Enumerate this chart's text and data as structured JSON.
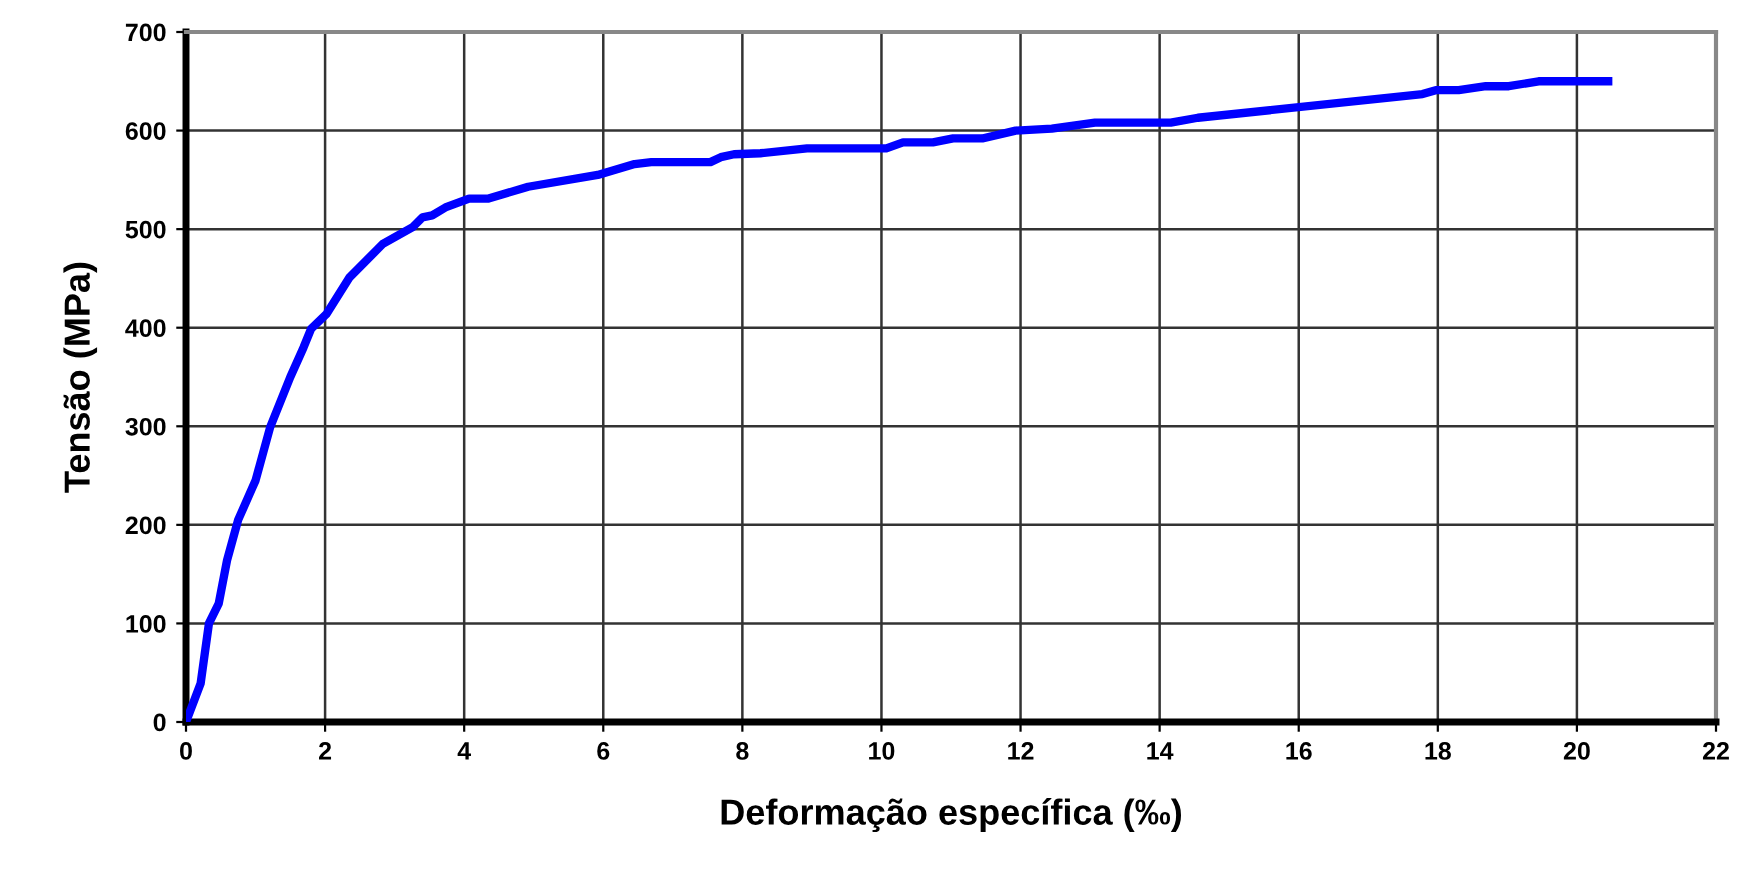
{
  "chart_data": {
    "type": "line",
    "xlabel": "Deformação específica (‰)",
    "ylabel": "Tensão (MPa)",
    "series": [
      {
        "color": "#0000ff",
        "x": [
          0,
          0.21,
          0.33,
          0.47,
          0.59,
          0.75,
          1.0,
          1.21,
          1.5,
          1.69,
          1.8,
          2.02,
          2.35,
          2.83,
          3.26,
          3.4,
          3.54,
          3.73,
          4.07,
          4.35,
          4.92,
          5.92,
          6.45,
          6.69,
          7.54,
          7.69,
          7.88,
          8.26,
          8.93,
          10.07,
          10.31,
          10.74,
          11.03,
          11.45,
          11.93,
          12.45,
          13.07,
          14.16,
          14.55,
          17.78,
          17.97,
          18.3,
          18.69,
          19.02,
          19.45,
          20.45
        ],
        "values": [
          0,
          39,
          100,
          120,
          164,
          205,
          245,
          299,
          350,
          380,
          399,
          414,
          451,
          485,
          502,
          512,
          514,
          522,
          531,
          531,
          543,
          555,
          566,
          568,
          568,
          573,
          576,
          577,
          582,
          582,
          588,
          588,
          592,
          592,
          600,
          602,
          608,
          608,
          613,
          637,
          641,
          641,
          645,
          645,
          650,
          650
        ]
      }
    ],
    "xlim": [
      0,
      22
    ],
    "xticks": [
      0,
      2,
      4,
      6,
      8,
      10,
      12,
      14,
      16,
      18,
      20,
      22
    ],
    "ylim": [
      0,
      700
    ],
    "yticks": [
      0,
      100,
      200,
      300,
      400,
      500,
      600,
      700
    ],
    "grid": true,
    "legend": false,
    "marker": "none",
    "line_style": "solid"
  }
}
